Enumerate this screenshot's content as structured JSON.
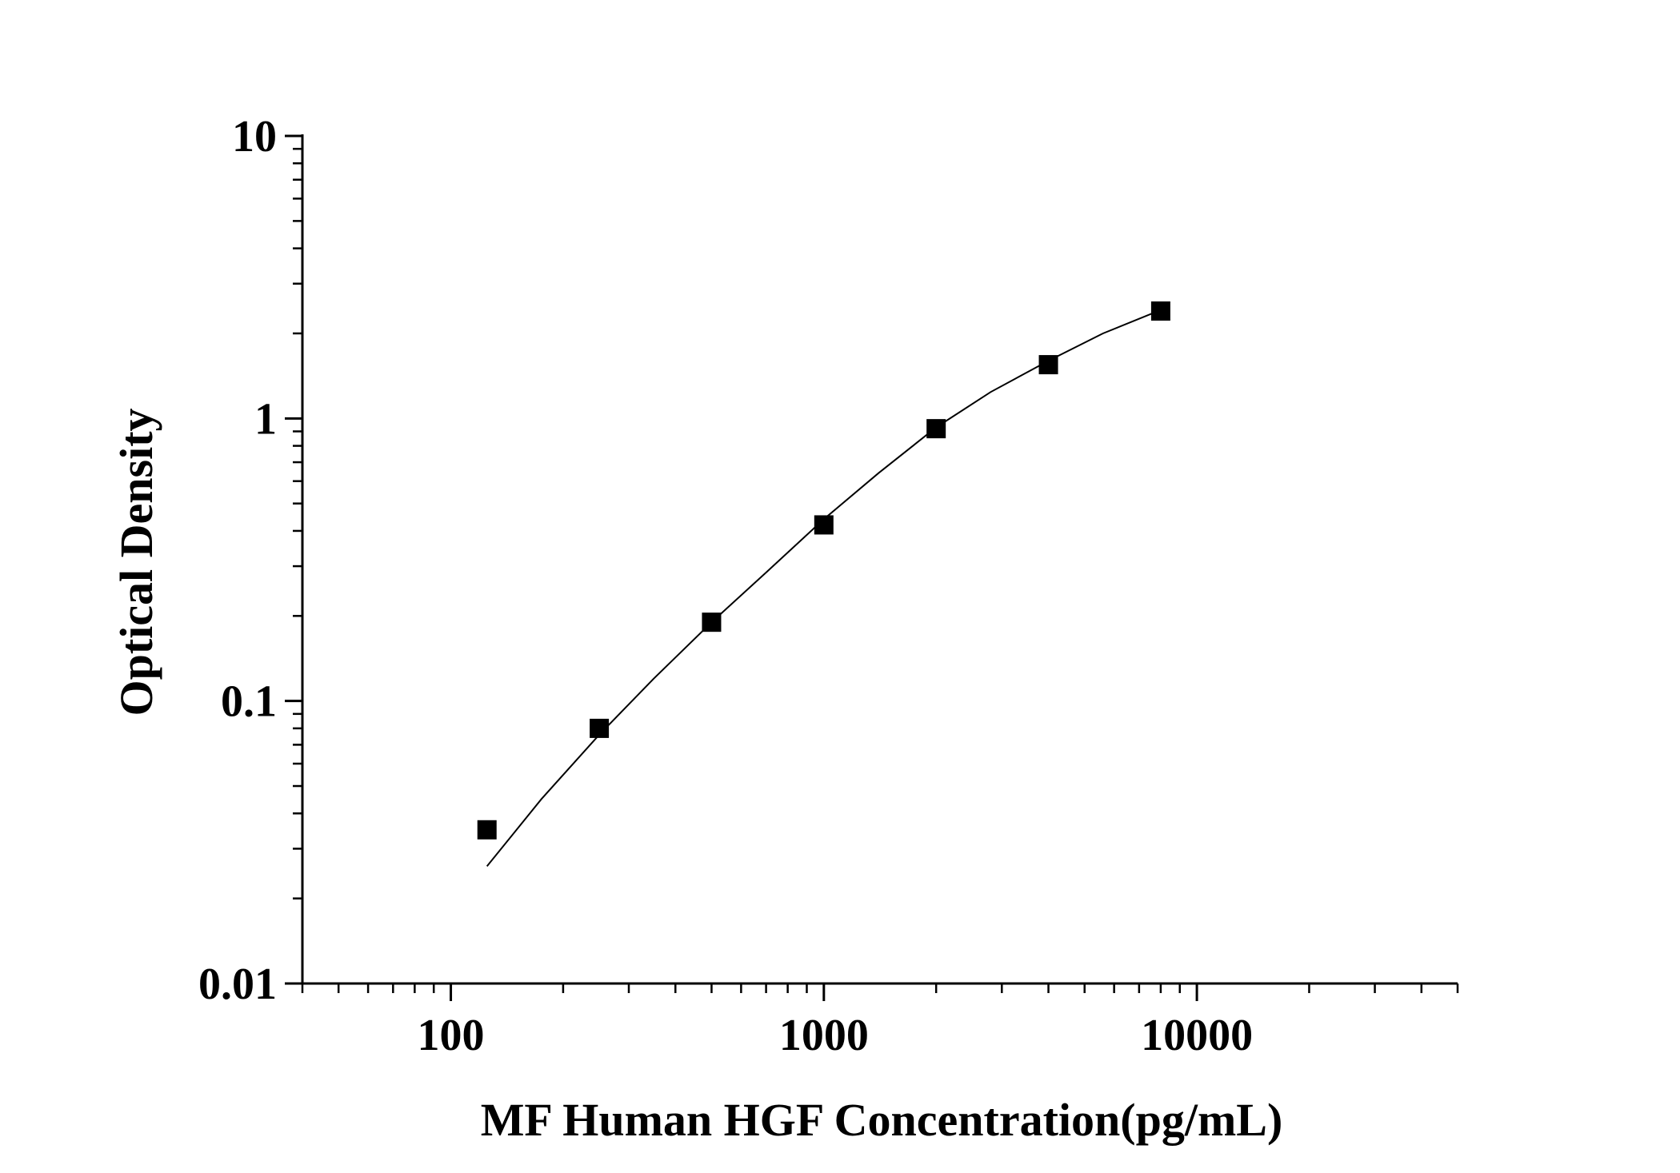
{
  "chart_data": {
    "type": "scatter",
    "title": "",
    "xlabel": "MF Human HGF Concentration(pg/mL)",
    "ylabel": "Optical Density",
    "xscale": "log",
    "yscale": "log",
    "xlim": [
      40,
      50000
    ],
    "ylim": [
      0.01,
      10
    ],
    "x_ticks": [
      "100",
      "1000",
      "10000"
    ],
    "y_ticks": [
      "0.01",
      "0.1",
      "1",
      "10"
    ],
    "grid": false,
    "legend": "none",
    "colors": {
      "axis": "#000000",
      "marker": "#000000",
      "curve": "#000000"
    },
    "series": [
      {
        "x": [
          125,
          250,
          500,
          1000,
          2000,
          4000,
          8000
        ],
        "y": [
          0.035,
          0.08,
          0.19,
          0.42,
          0.92,
          1.55,
          2.4
        ]
      }
    ],
    "fit_curve": {
      "x": [
        125,
        175,
        250,
        350,
        500,
        700,
        1000,
        1400,
        2000,
        2800,
        4000,
        5600,
        8000
      ],
      "y": [
        0.026,
        0.045,
        0.076,
        0.12,
        0.19,
        0.285,
        0.44,
        0.64,
        0.93,
        1.24,
        1.6,
        2.0,
        2.42
      ]
    }
  }
}
